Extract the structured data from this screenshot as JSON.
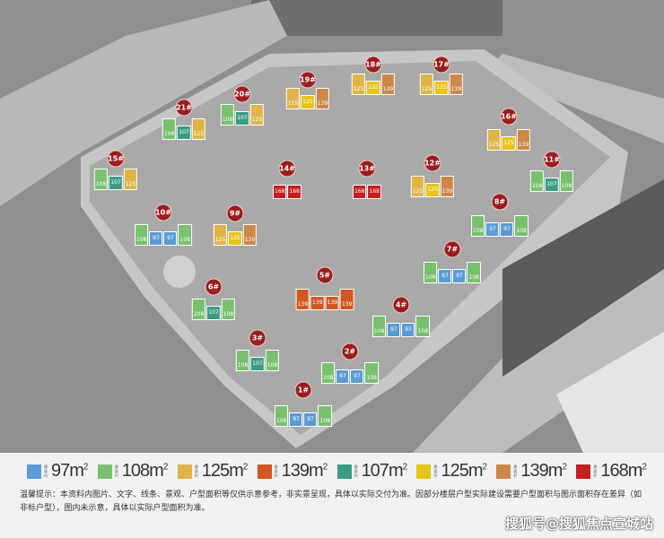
{
  "unit_types": {
    "97": {
      "label": "97",
      "color": "#5b9bd5"
    },
    "108": {
      "label": "108",
      "color": "#79c06f"
    },
    "125a": {
      "label": "125",
      "color": "#dfb548"
    },
    "139a": {
      "label": "139",
      "color": "#d2561f"
    },
    "107": {
      "label": "107",
      "color": "#3b9c86"
    },
    "125b": {
      "label": "125",
      "color": "#e6c419"
    },
    "139b": {
      "label": "139",
      "color": "#cd8748"
    },
    "168": {
      "label": "168",
      "color": "#c41f1f"
    }
  },
  "buildings": [
    {
      "label": "1#",
      "units": [
        "108",
        "97",
        "97",
        "108"
      ]
    },
    {
      "label": "2#",
      "units": [
        "108",
        "97",
        "97",
        "108"
      ]
    },
    {
      "label": "3#",
      "units": [
        "108",
        "107",
        "108"
      ]
    },
    {
      "label": "4#",
      "units": [
        "108",
        "97",
        "97",
        "108"
      ]
    },
    {
      "label": "5#",
      "units": [
        "139a",
        "139a",
        "139a",
        "139a"
      ]
    },
    {
      "label": "6#",
      "units": [
        "108",
        "107",
        "108"
      ]
    },
    {
      "label": "7#",
      "units": [
        "108",
        "97",
        "97",
        "108"
      ]
    },
    {
      "label": "8#",
      "units": [
        "108",
        "97",
        "97",
        "108"
      ]
    },
    {
      "label": "9#",
      "units": [
        "125a",
        "125b",
        "139b"
      ]
    },
    {
      "label": "10#",
      "units": [
        "108",
        "97",
        "97",
        "108"
      ]
    },
    {
      "label": "11#",
      "units": [
        "108",
        "107",
        "108"
      ]
    },
    {
      "label": "12#",
      "units": [
        "125a",
        "125b",
        "139b"
      ]
    },
    {
      "label": "13#",
      "units": [
        "168",
        "168"
      ]
    },
    {
      "label": "14#",
      "units": [
        "168",
        "168"
      ]
    },
    {
      "label": "15#",
      "units": [
        "108",
        "107",
        "125a"
      ]
    },
    {
      "label": "16#",
      "units": [
        "125a",
        "125b",
        "139b"
      ]
    },
    {
      "label": "17#",
      "units": [
        "125a",
        "125b",
        "139b"
      ]
    },
    {
      "label": "18#",
      "units": [
        "125a",
        "125b",
        "139b"
      ]
    },
    {
      "label": "19#",
      "units": [
        "125a",
        "125b",
        "139b"
      ]
    },
    {
      "label": "20#",
      "units": [
        "108",
        "107",
        "125a"
      ]
    },
    {
      "label": "21#",
      "units": [
        "108",
        "107",
        "125a"
      ]
    }
  ],
  "legend": {
    "prefix": "建面约",
    "unit": "m",
    "exp": "2",
    "items": [
      {
        "value": "97",
        "color": "#5b9bd5"
      },
      {
        "value": "108",
        "color": "#79c06f"
      },
      {
        "value": "125",
        "color": "#dfb548"
      },
      {
        "value": "139",
        "color": "#d2561f"
      },
      {
        "value": "107",
        "color": "#3b9c86"
      },
      {
        "value": "125",
        "color": "#e6c419"
      },
      {
        "value": "139",
        "color": "#cd8748"
      },
      {
        "value": "168",
        "color": "#c41f1f"
      }
    ]
  },
  "note": "温馨提示：本资料内图片、文字、线条、景观、户型面积等仅供示意参考，非实景呈现，具体以实际交付为准。因部分楼层户型实际建设需要户型面积与图示面积存在差异（如非标户型），图内未示意，具体以实际户型面积为准。",
  "watermark": "搜狐号@搜狐焦点宣城站"
}
